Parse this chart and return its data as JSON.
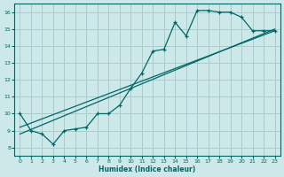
{
  "xlabel": "Humidex (Indice chaleur)",
  "bg_color": "#cce8e8",
  "grid_color": "#aacccc",
  "line_color": "#006666",
  "xlim": [
    -0.5,
    23.5
  ],
  "ylim": [
    7.5,
    16.5
  ],
  "xticks": [
    0,
    1,
    2,
    3,
    4,
    5,
    6,
    7,
    8,
    9,
    10,
    11,
    12,
    13,
    14,
    15,
    16,
    17,
    18,
    19,
    20,
    21,
    22,
    23
  ],
  "yticks": [
    8,
    9,
    10,
    11,
    12,
    13,
    14,
    15,
    16
  ],
  "line_jagged": {
    "x": [
      0,
      1,
      2,
      3,
      4,
      5,
      6,
      7,
      8,
      9,
      10,
      11,
      12,
      13,
      14,
      15,
      16,
      17,
      18,
      19,
      20,
      21,
      22,
      23
    ],
    "y": [
      10,
      9,
      8.8,
      8.2,
      9.0,
      9.1,
      9.2,
      10.0,
      10.0,
      10.5,
      11.5,
      12.4,
      13.7,
      13.8,
      15.4,
      14.6,
      16.1,
      16.1,
      16.0,
      16.0,
      15.7,
      14.9,
      14.9,
      14.9
    ]
  },
  "line_straight1": {
    "x": [
      0,
      23
    ],
    "y": [
      8.8,
      15.0
    ]
  },
  "line_straight2": {
    "x": [
      0,
      23
    ],
    "y": [
      9.2,
      14.9
    ]
  }
}
